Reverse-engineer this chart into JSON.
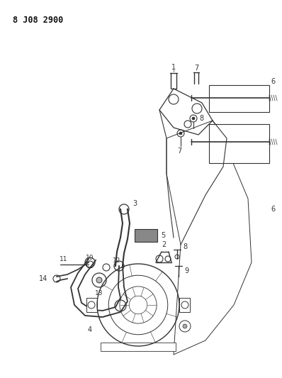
{
  "title": "8 J08 2900",
  "bg_color": "#ffffff",
  "line_color": "#333333",
  "title_fontsize": 8.5,
  "label_fontsize": 7,
  "fig_width": 3.98,
  "fig_height": 5.33,
  "dpi": 100
}
